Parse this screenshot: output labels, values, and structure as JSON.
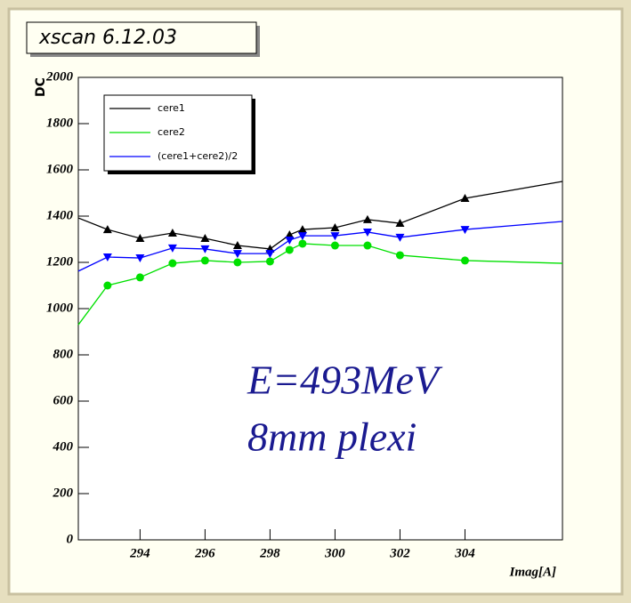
{
  "chart_data": {
    "type": "line",
    "title": "xscan 6.12.03",
    "x_label": "Imag[A]",
    "y_label": "DC",
    "annotations": [
      "E=493MeV",
      "8mm plexi"
    ],
    "x": [
      292.1,
      293,
      294,
      295,
      296,
      297,
      298,
      298.6,
      299,
      300,
      301,
      302,
      304,
      307
    ],
    "series": [
      {
        "name": "cere1",
        "color": "#000000",
        "marker": "triangle-up",
        "values": [
          1392,
          1342,
          1304,
          1327,
          1304,
          1273,
          1258,
          1319,
          1342,
          1350,
          1385,
          1369,
          1477,
          1550
        ]
      },
      {
        "name": "cere2",
        "color": "#00e000",
        "marker": "circle",
        "values": [
          930,
          1100,
          1135,
          1196,
          1208,
          1200,
          1204,
          1254,
          1281,
          1273,
          1273,
          1231,
          1208,
          1196
        ]
      },
      {
        "name": "(cere1+cere2)/2",
        "color": "#0000ff",
        "marker": "triangle-down",
        "values": [
          1162,
          1223,
          1219,
          1262,
          1258,
          1238,
          1238,
          1296,
          1315,
          1315,
          1331,
          1308,
          1342,
          1377
        ]
      }
    ],
    "xlim": [
      292.1,
      307
    ],
    "xticks": [
      294,
      296,
      298,
      300,
      302,
      304
    ],
    "ylim": [
      0,
      2000
    ],
    "yticks": [
      0,
      200,
      400,
      600,
      800,
      1000,
      1200,
      1400,
      1600,
      1800,
      2000
    ],
    "legend": "top-left"
  }
}
